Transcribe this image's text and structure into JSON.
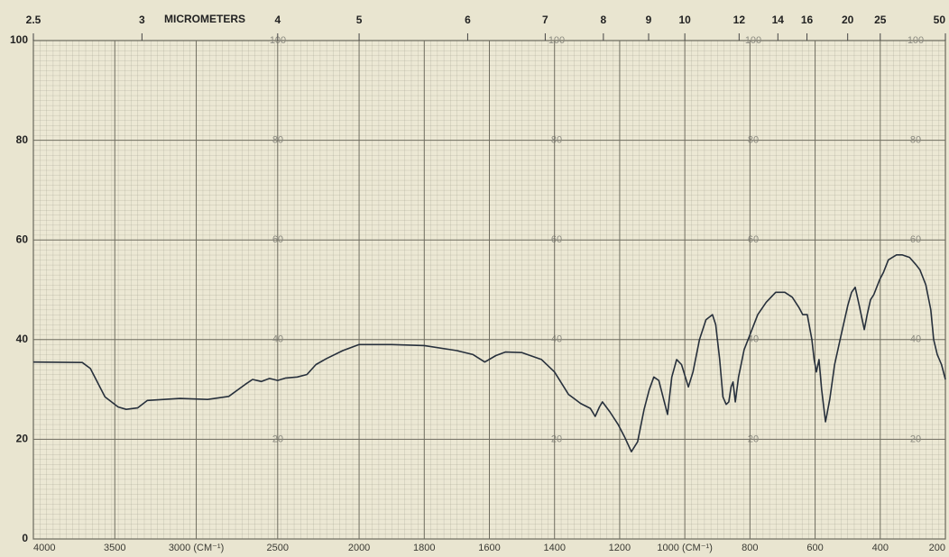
{
  "chart_data": {
    "type": "line",
    "x2label": "MICROMETERS",
    "xlim": [
      4000,
      200
    ],
    "xscale_break": 2000,
    "xticks": [
      4000,
      3500,
      {
        "value": 3000,
        "label": "3000  (CM⁻¹)"
      },
      2500,
      2000,
      1800,
      1600,
      1400,
      1200,
      {
        "value": 1000,
        "label": "1000  (CM⁻¹)"
      },
      800,
      600,
      400,
      200
    ],
    "x2ticks": [
      2.5,
      3,
      4,
      5,
      6,
      7,
      8,
      9,
      10,
      12,
      14,
      16,
      20,
      25,
      50
    ],
    "ylim": [
      0,
      100
    ],
    "yticks": [
      0,
      20,
      40,
      60,
      80,
      100
    ],
    "grid": true,
    "color": "#27303c",
    "x": [
      4000,
      3700,
      3650,
      3560,
      3480,
      3430,
      3360,
      3300,
      3100,
      2930,
      2800,
      2700,
      2654,
      2600,
      2550,
      2500,
      2450,
      2380,
      2320,
      2265,
      2200,
      2100,
      2000,
      1900,
      1800,
      1700,
      1650,
      1614,
      1580,
      1551,
      1500,
      1440,
      1400,
      1357,
      1320,
      1290,
      1275,
      1262,
      1253,
      1230,
      1205,
      1185,
      1164,
      1145,
      1125,
      1109,
      1095,
      1080,
      1065,
      1053,
      1040,
      1025,
      1010,
      989,
      975,
      955,
      935,
      915,
      905,
      893,
      883,
      873,
      865,
      858,
      852,
      845,
      835,
      818,
      800,
      776,
      750,
      721,
      693,
      670,
      650,
      638,
      624,
      610,
      603,
      596,
      588,
      580,
      568,
      555,
      540,
      520,
      499,
      488,
      477,
      465,
      449,
      440,
      430,
      420,
      402,
      390,
      375,
      350,
      333,
      310,
      290,
      278,
      260,
      245,
      236,
      225,
      212,
      200
    ],
    "values": [
      35.5,
      35.4,
      34.2,
      28.5,
      26.5,
      26,
      26.3,
      27.8,
      28.2,
      28,
      28.6,
      31,
      32,
      31.6,
      32.2,
      31.8,
      32.3,
      32.5,
      33,
      35,
      36.2,
      37.8,
      39,
      39,
      38.8,
      37.8,
      37,
      35.5,
      36.8,
      37.5,
      37.4,
      36,
      33.5,
      29,
      27.2,
      26.2,
      24.6,
      26.5,
      27.5,
      25.5,
      23,
      20.5,
      17.5,
      19.5,
      26,
      30,
      32.5,
      31.8,
      28,
      25,
      32.5,
      36,
      35,
      30.5,
      33.5,
      40,
      44,
      45,
      43,
      36,
      28.5,
      27,
      27.5,
      30.5,
      31.5,
      27.5,
      32.5,
      38,
      41,
      45,
      47.5,
      49.5,
      49.5,
      48.5,
      46.5,
      45,
      45,
      40,
      36,
      33.5,
      36,
      30,
      23.5,
      28,
      35,
      41,
      47,
      49.5,
      50.5,
      47,
      42,
      45,
      48,
      49,
      52,
      53.5,
      56,
      57,
      57,
      56.5,
      55,
      54,
      51,
      46,
      40,
      37,
      35,
      32
    ]
  }
}
